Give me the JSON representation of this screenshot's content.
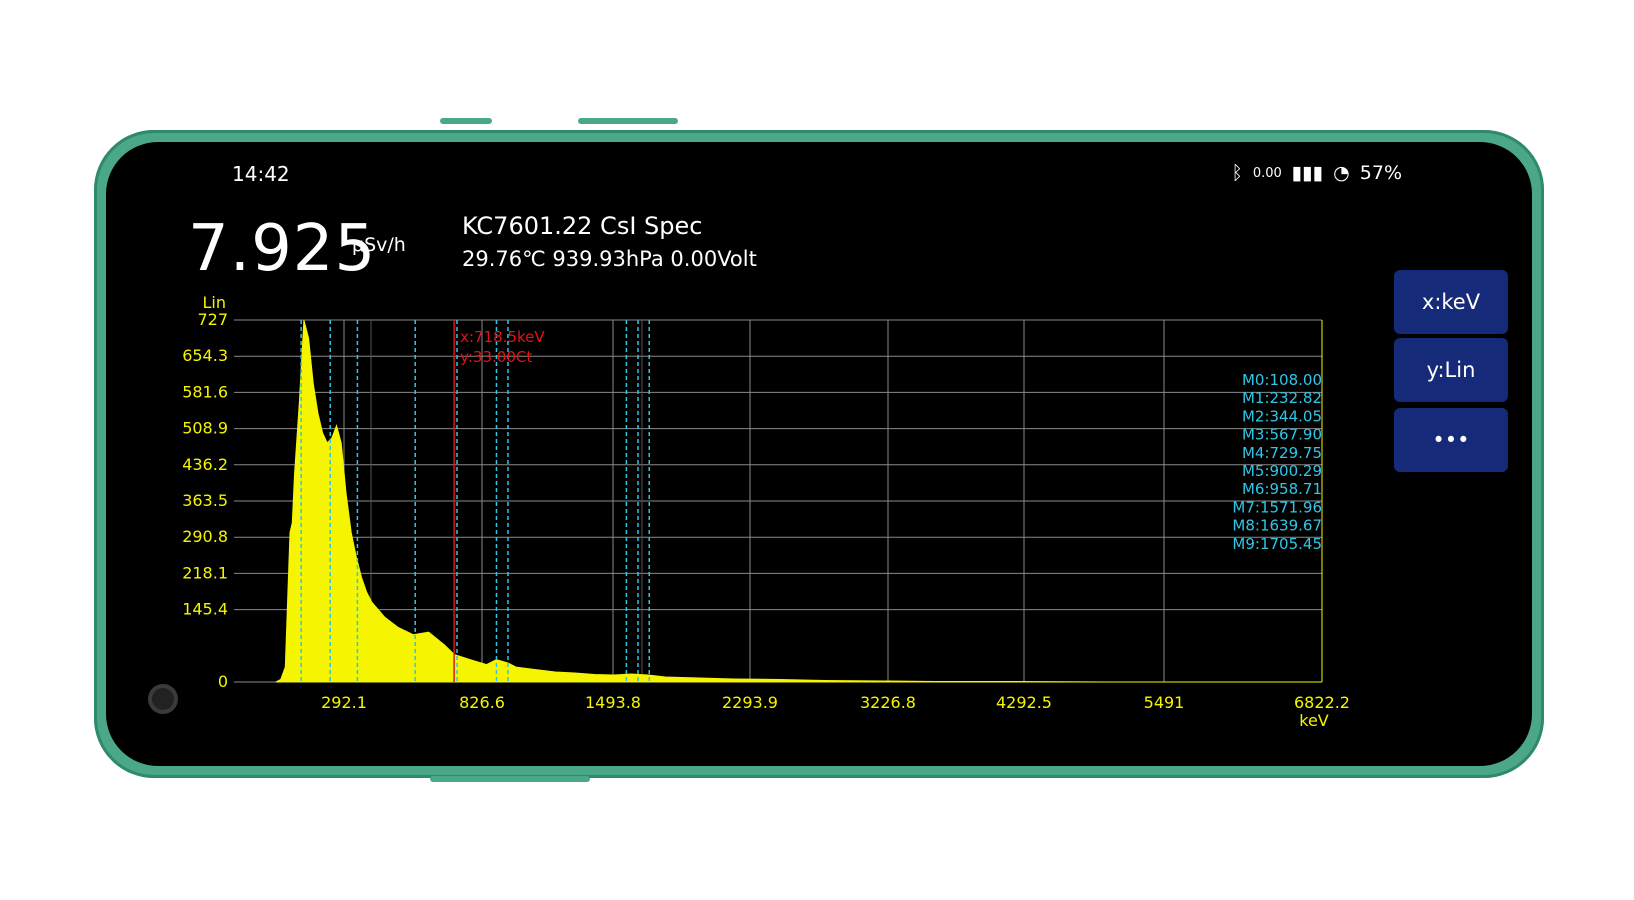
{
  "status_bar": {
    "time": "14:42",
    "icons": [
      "bluetooth-icon",
      "data-speed-icon",
      "signal-icon",
      "battery-icon"
    ],
    "data_speed": "0.00",
    "battery": "57%"
  },
  "header": {
    "dose_rate": "7.925",
    "dose_unit": "μSv/h",
    "device": "KC7601.22 CsI Spec",
    "environment": "29.76℃ 939.93hPa 0.00Volt"
  },
  "buttons": {
    "x_axis": "x:keV",
    "y_axis": "y:Lin",
    "more": "•••"
  },
  "colors": {
    "spectrum": "#f5f500",
    "markers": "#2fc6e8",
    "cursor": "#e01414",
    "button": "#152a78",
    "grid": "#8a8a8a"
  },
  "chart_data": {
    "type": "area",
    "y_scale_label": "Lin",
    "x_unit_label": "keV",
    "y_ticks": [
      "727",
      "654.3",
      "581.6",
      "508.9",
      "436.2",
      "363.5",
      "290.8",
      "218.1",
      "145.4",
      "0"
    ],
    "x_ticks": [
      "292.1",
      "826.6",
      "1493.8",
      "2293.9",
      "3226.8",
      "4292.5",
      "5491",
      "6822.2"
    ],
    "ylim": [
      0,
      727
    ],
    "grid": true,
    "cursor": {
      "x_label": "x:718.5keV",
      "y_label": "y:33.00Ct",
      "energy": 718.5
    },
    "markers": [
      {
        "label": "M0:108.00",
        "energy": 108.0
      },
      {
        "label": "M1:232.82",
        "energy": 232.82
      },
      {
        "label": "M2:344.05",
        "energy": 344.05
      },
      {
        "label": "M3:567.90",
        "energy": 567.9
      },
      {
        "label": "M4:729.75",
        "energy": 729.75
      },
      {
        "label": "M5:900.29",
        "energy": 900.29
      },
      {
        "label": "M6:958.71",
        "energy": 958.71
      },
      {
        "label": "M7:1571.96",
        "energy": 1571.96
      },
      {
        "label": "M8:1639.67",
        "energy": 1639.67
      },
      {
        "label": "M9:1705.45",
        "energy": 1705.45
      }
    ],
    "spectrum": {
      "x": [
        0,
        20,
        40,
        60,
        70,
        80,
        100,
        120,
        140,
        160,
        180,
        200,
        220,
        240,
        260,
        280,
        300,
        320,
        340,
        360,
        380,
        400,
        450,
        500,
        560,
        620,
        680,
        720,
        780,
        850,
        900,
        960,
        1000,
        1100,
        1200,
        1300,
        1400,
        1500,
        1600,
        1700,
        1800,
        2000,
        2200,
        2500,
        2800,
        3200,
        3600,
        4200,
        5000,
        6000,
        6822
      ],
      "y": [
        0,
        5,
        30,
        300,
        320,
        420,
        560,
        727,
        690,
        600,
        540,
        500,
        480,
        490,
        515,
        480,
        380,
        300,
        250,
        210,
        180,
        160,
        130,
        110,
        95,
        100,
        75,
        55,
        45,
        35,
        45,
        38,
        30,
        25,
        20,
        18,
        15,
        14,
        16,
        14,
        10,
        8,
        6,
        5,
        3,
        2,
        1,
        1,
        0,
        0,
        0
      ]
    }
  }
}
